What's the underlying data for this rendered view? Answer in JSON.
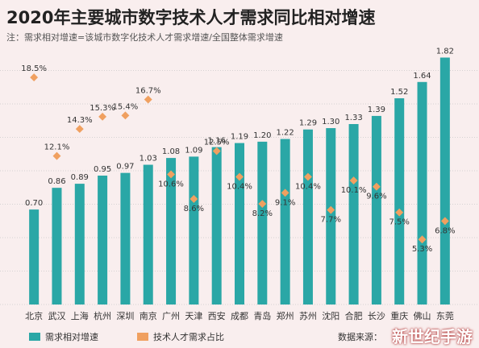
{
  "title": "2020年主要城市数字技术人才需求同比相对增速",
  "note": "注：需求相对增速=该城市数字化技术人才需求增速/全国整体需求增速",
  "source": "数据来源：",
  "watermark": "新世纪手游",
  "colors": {
    "bar": "#2aa7a6",
    "point": "#f0a060",
    "grid": "#c9c9c9",
    "text": "#333333"
  },
  "chart_data": {
    "type": "bar",
    "categories": [
      "北京",
      "武汉",
      "上海",
      "杭州",
      "深圳",
      "南京",
      "广州",
      "天津",
      "西安",
      "成都",
      "青岛",
      "郑州",
      "苏州",
      "沈阳",
      "合肥",
      "长沙",
      "重庆",
      "佛山",
      "东莞"
    ],
    "series": [
      {
        "name": "需求相对增速",
        "type": "bar",
        "values": [
          0.7,
          0.86,
          0.89,
          0.95,
          0.97,
          1.03,
          1.08,
          1.09,
          1.16,
          1.19,
          1.2,
          1.22,
          1.29,
          1.3,
          1.33,
          1.39,
          1.52,
          1.64,
          1.82
        ],
        "labels": [
          "0.70",
          "0.86",
          "0.89",
          "0.95",
          "0.97",
          "1.03",
          "1.08",
          "1.09",
          "1.16",
          "1.19",
          "1.20",
          "1.22",
          "1.29",
          "1.30",
          "1.33",
          "1.39",
          "1.52",
          "1.64",
          "1.82"
        ]
      },
      {
        "name": "技术人才需求占比",
        "type": "scatter",
        "values": [
          18.5,
          12.1,
          14.3,
          15.3,
          15.4,
          16.7,
          10.6,
          8.6,
          12.5,
          10.4,
          8.2,
          9.1,
          10.4,
          7.7,
          10.1,
          9.6,
          7.5,
          5.3,
          6.8
        ],
        "labels": [
          "18.5%",
          "12.1%",
          "14.3%",
          "15.3%",
          "15.4%",
          "16.7%",
          "10.6%",
          "8.6%",
          "12.5%",
          "10.4%",
          "8.2%",
          "9.1%",
          "10.4%",
          "7.7%",
          "10.1%",
          "9.6%",
          "7.5%",
          "5.3%",
          "6.8%"
        ]
      }
    ],
    "ylim": [
      0,
      1.9
    ],
    "y2lim": [
      0,
      21
    ],
    "grid": true,
    "legend_position": "bottom-left"
  }
}
